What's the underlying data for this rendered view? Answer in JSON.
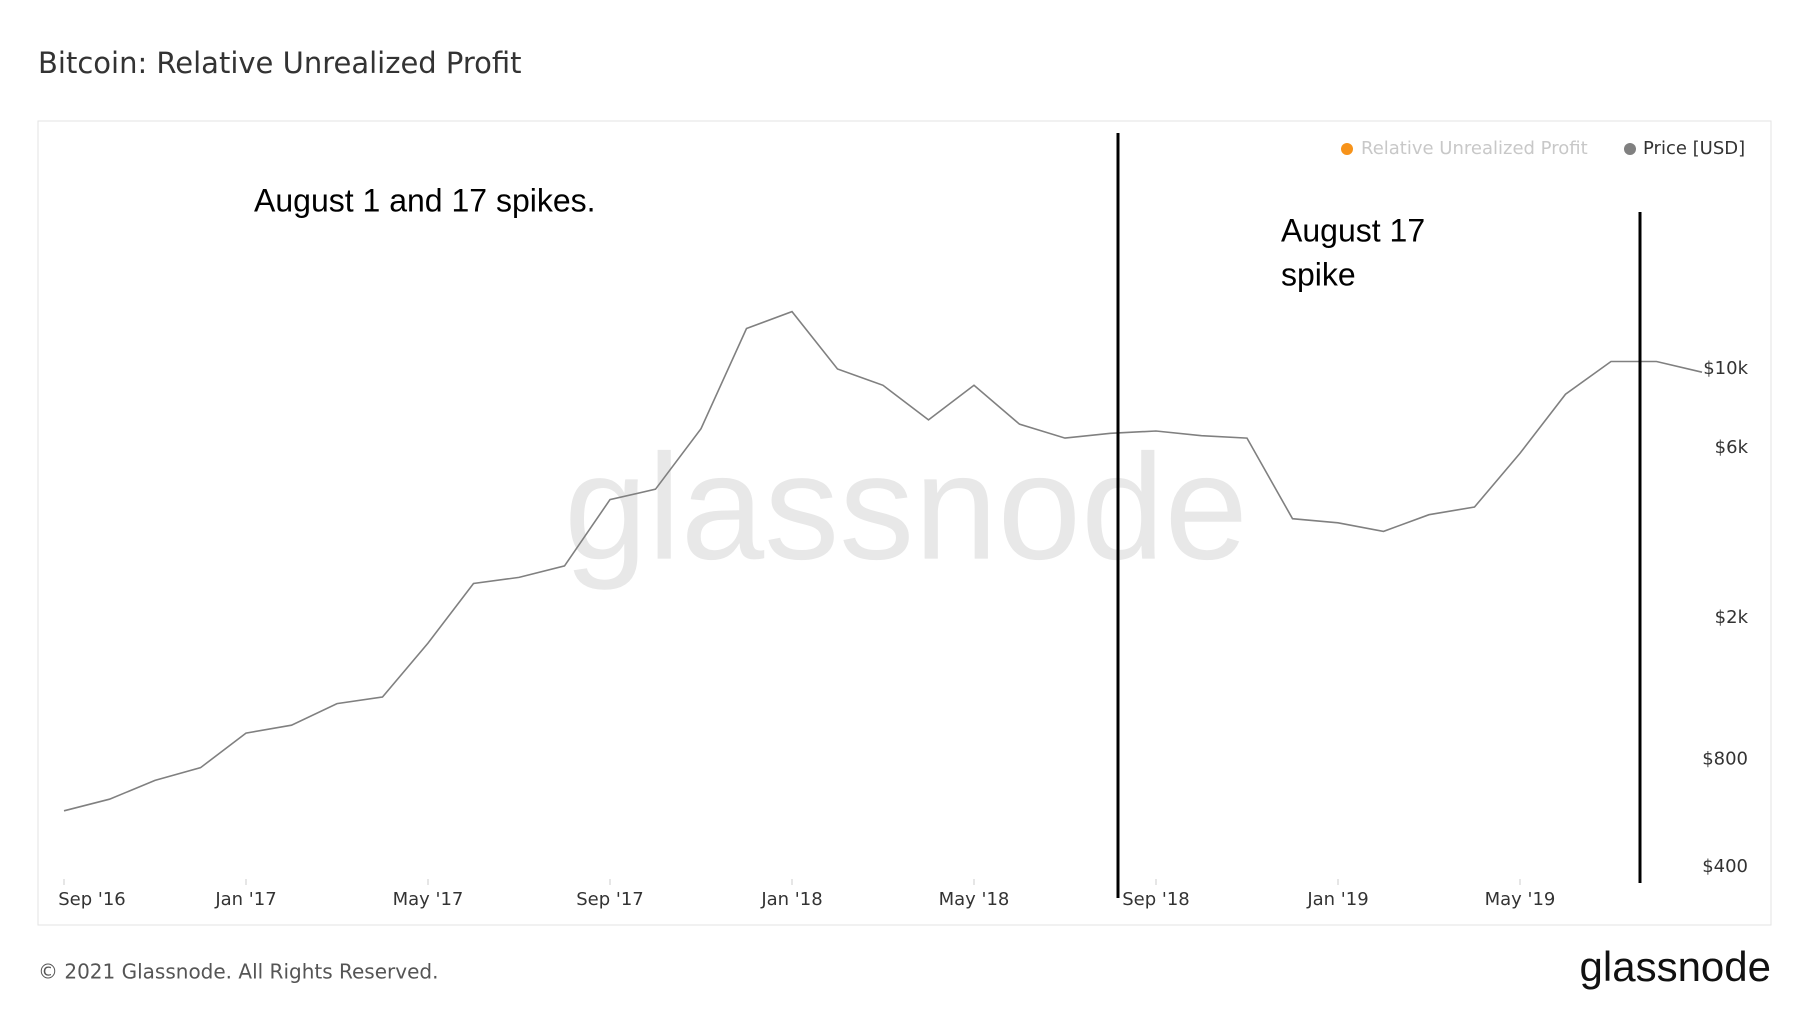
{
  "header": {
    "title": "Bitcoin: Relative Unrealized Profit"
  },
  "chart_data": {
    "type": "line",
    "x": [
      "2016-09",
      "2016-10",
      "2016-11",
      "2016-12",
      "2017-01",
      "2017-02",
      "2017-03",
      "2017-04",
      "2017-05",
      "2017-06",
      "2017-07",
      "2017-08",
      "2017-09",
      "2017-10",
      "2017-11",
      "2017-12",
      "2018-01",
      "2018-02",
      "2018-03",
      "2018-04",
      "2018-05",
      "2018-06",
      "2018-07",
      "2018-08",
      "2018-09",
      "2018-10",
      "2018-11",
      "2018-12",
      "2019-01",
      "2019-02",
      "2019-03",
      "2019-04",
      "2019-05",
      "2019-06",
      "2019-07",
      "2019-08",
      "2019-09"
    ],
    "series": [
      {
        "name": "Price [USD]",
        "color": "#808080",
        "values": [
          575,
          620,
          700,
          760,
          950,
          1000,
          1150,
          1200,
          1700,
          2500,
          2600,
          2800,
          4300,
          4600,
          6800,
          13000,
          14500,
          10000,
          9000,
          7200,
          9000,
          7000,
          6400,
          6600,
          6700,
          6500,
          6400,
          3800,
          3700,
          3500,
          3900,
          4100,
          5800,
          8500,
          10500,
          10500,
          9800
        ]
      }
    ],
    "inactive_series": [
      {
        "name": "Relative Unrealized Profit",
        "color": "#f7931a"
      }
    ],
    "xlim": [
      "2016-09",
      "2019-09"
    ],
    "xticks": [
      {
        "value": "2016-09",
        "label": "Sep '16"
      },
      {
        "value": "2017-01",
        "label": "Jan '17"
      },
      {
        "value": "2017-05",
        "label": "May '17"
      },
      {
        "value": "2017-09",
        "label": "Sep '17"
      },
      {
        "value": "2018-01",
        "label": "Jan '18"
      },
      {
        "value": "2018-05",
        "label": "May '18"
      },
      {
        "value": "2018-09",
        "label": "Sep '18"
      },
      {
        "value": "2019-01",
        "label": "Jan '19"
      },
      {
        "value": "2019-05",
        "label": "May '19"
      }
    ],
    "ylim": [
      370,
      46000
    ],
    "log_y": true,
    "yticks": [
      {
        "value": 400,
        "label": "$400"
      },
      {
        "value": 800,
        "label": "$800"
      },
      {
        "value": 2000,
        "label": "$2k"
      },
      {
        "value": 6000,
        "label": "$6k"
      },
      {
        "value": 10000,
        "label": "$10k"
      }
    ],
    "annotations": [
      "August 1 and 17 spikes.",
      "August 17",
      "spike"
    ],
    "watermark": "glassnode"
  },
  "footer": {
    "copyright": "© 2021 Glassnode. All Rights Reserved.",
    "logo": "glassnode"
  }
}
